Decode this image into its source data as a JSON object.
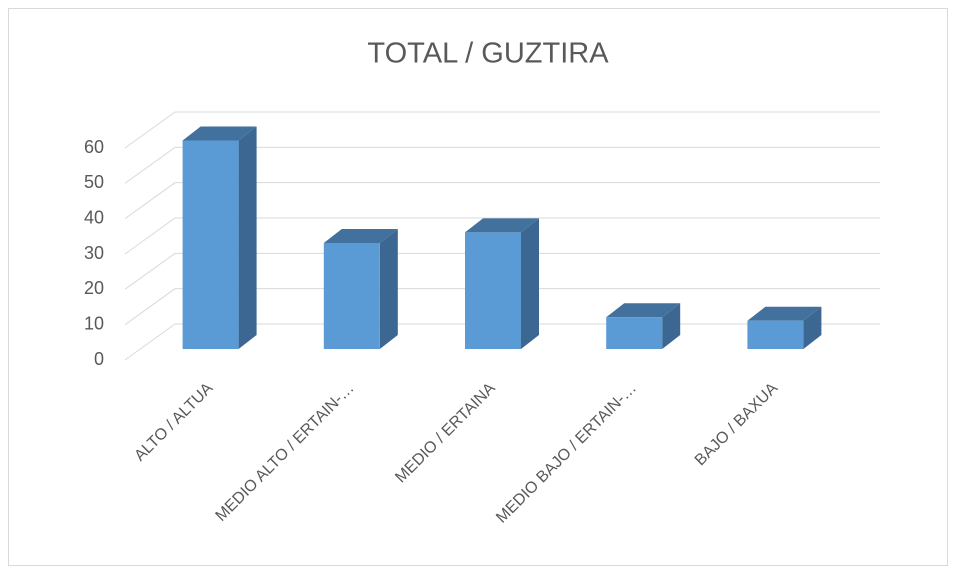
{
  "chart_data": {
    "type": "bar",
    "title": "TOTAL / GUZTIRA",
    "categories": [
      "ALTO / ALTUA",
      "MEDIO ALTO / ERTAIN-…",
      "MEDIO / ERTAINA",
      "MEDIO BAJO / ERTAIN-…",
      "BAJO / BAXUA"
    ],
    "values": [
      59,
      30,
      33,
      9,
      8
    ],
    "color": "#5b9bd5",
    "ylim": [
      0,
      60
    ],
    "yticks": [
      0,
      10,
      20,
      30,
      40,
      50,
      60
    ],
    "grid": true
  }
}
